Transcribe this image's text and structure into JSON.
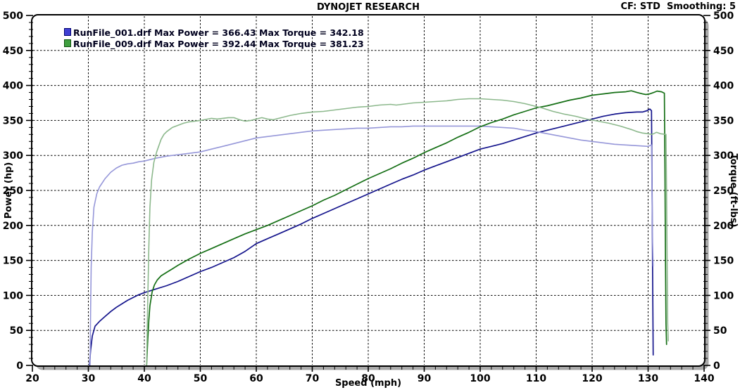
{
  "header": {
    "title": "DYNOJET RESEARCH",
    "settings_label": "CF: STD  Smoothing: 5"
  },
  "chart_data": {
    "type": "line",
    "title": "DYNOJET RESEARCH",
    "grid": "dashed major gridlines, white background, rounded black frame with gray drop shadow",
    "x_axis": {
      "label": "Speed (mph)",
      "range": [
        20,
        140
      ],
      "ticks": [
        20,
        30,
        40,
        50,
        60,
        70,
        80,
        90,
        100,
        110,
        120,
        130,
        140
      ],
      "minor_step": 2
    },
    "y_axis_left": {
      "label": "Power (hp)",
      "range": [
        0,
        500
      ],
      "ticks": [
        0,
        50,
        100,
        150,
        200,
        250,
        300,
        350,
        400,
        450,
        500
      ],
      "minor_step": 10
    },
    "y_axis_right": {
      "label": "Torque (ft-lbs)",
      "range": [
        0,
        500
      ],
      "ticks": [
        0,
        50,
        100,
        150,
        200,
        250,
        300,
        350,
        400,
        450,
        500
      ],
      "minor_step": 10
    },
    "legend": [
      {
        "run": "RunFile_001.drf",
        "max_power": 366.43,
        "max_torque": 342.18,
        "label_power": "RunFile_001.drf Max Power = 366.43",
        "label_torque": "Max Torque = 342.18",
        "swatch_fill": "#3f3fd3",
        "swatch_border": "#000070"
      },
      {
        "run": "RunFile_009.drf",
        "max_power": 392.44,
        "max_torque": 381.23,
        "label_power": "RunFile_009.drf Max Power = 392.44",
        "label_torque": "Max Torque = 381.23",
        "swatch_fill": "#3f9f3f",
        "swatch_border": "#0b4f0b"
      }
    ],
    "series": [
      {
        "name": "RunFile_001 Power (hp)",
        "color": "#14148c",
        "width": 1.7,
        "points": [
          [
            30.2,
            0
          ],
          [
            30.4,
            22
          ],
          [
            30.7,
            42
          ],
          [
            31.2,
            56
          ],
          [
            32,
            63
          ],
          [
            33,
            70
          ],
          [
            34,
            77
          ],
          [
            35,
            83
          ],
          [
            36,
            88
          ],
          [
            37,
            93
          ],
          [
            38,
            97
          ],
          [
            39,
            101
          ],
          [
            40,
            104
          ],
          [
            42,
            109
          ],
          [
            44,
            114
          ],
          [
            46,
            120
          ],
          [
            48,
            127
          ],
          [
            50,
            134
          ],
          [
            52,
            140
          ],
          [
            54,
            147
          ],
          [
            56,
            154
          ],
          [
            58,
            163
          ],
          [
            60,
            174
          ],
          [
            62,
            181
          ],
          [
            64,
            188
          ],
          [
            66,
            195
          ],
          [
            68,
            202
          ],
          [
            70,
            210
          ],
          [
            72,
            217
          ],
          [
            74,
            224
          ],
          [
            76,
            231
          ],
          [
            78,
            238
          ],
          [
            80,
            245
          ],
          [
            82,
            252
          ],
          [
            84,
            259
          ],
          [
            86,
            266
          ],
          [
            88,
            272
          ],
          [
            90,
            279
          ],
          [
            92,
            285
          ],
          [
            94,
            291
          ],
          [
            96,
            297
          ],
          [
            98,
            303
          ],
          [
            100,
            309
          ],
          [
            102,
            313
          ],
          [
            104,
            317
          ],
          [
            106,
            322
          ],
          [
            108,
            327
          ],
          [
            110,
            332
          ],
          [
            112,
            336
          ],
          [
            114,
            340
          ],
          [
            116,
            344
          ],
          [
            118,
            348
          ],
          [
            120,
            352
          ],
          [
            122,
            356
          ],
          [
            124,
            359
          ],
          [
            126,
            361
          ],
          [
            128,
            362
          ],
          [
            129,
            362
          ],
          [
            129.8,
            364
          ],
          [
            130.3,
            366.4
          ],
          [
            130.6,
            364
          ],
          [
            130.7,
            260
          ],
          [
            130.8,
            130
          ],
          [
            130.9,
            15
          ]
        ]
      },
      {
        "name": "RunFile_001 Torque (ft-lbs)",
        "color": "#9697d9",
        "width": 1.6,
        "points": [
          [
            30.3,
            0
          ],
          [
            30.4,
            80
          ],
          [
            30.5,
            140
          ],
          [
            30.7,
            190
          ],
          [
            31,
            226
          ],
          [
            31.5,
            245
          ],
          [
            32,
            255
          ],
          [
            33,
            267
          ],
          [
            34,
            276
          ],
          [
            35,
            282
          ],
          [
            36,
            286
          ],
          [
            37,
            288
          ],
          [
            38,
            289
          ],
          [
            39,
            291
          ],
          [
            40,
            292
          ],
          [
            42,
            296
          ],
          [
            44,
            299
          ],
          [
            46,
            301
          ],
          [
            48,
            303
          ],
          [
            50,
            305
          ],
          [
            52,
            309
          ],
          [
            54,
            313
          ],
          [
            56,
            317
          ],
          [
            58,
            321
          ],
          [
            60,
            325
          ],
          [
            62,
            327
          ],
          [
            64,
            329
          ],
          [
            66,
            331
          ],
          [
            68,
            333
          ],
          [
            70,
            335
          ],
          [
            72,
            336
          ],
          [
            74,
            337
          ],
          [
            76,
            338
          ],
          [
            78,
            339
          ],
          [
            80,
            339
          ],
          [
            82,
            340
          ],
          [
            84,
            341
          ],
          [
            86,
            341
          ],
          [
            88,
            342
          ],
          [
            92,
            342
          ],
          [
            96,
            342
          ],
          [
            100,
            342
          ],
          [
            102,
            341
          ],
          [
            104,
            340
          ],
          [
            106,
            339
          ],
          [
            108,
            336
          ],
          [
            110,
            334
          ],
          [
            112,
            331
          ],
          [
            114,
            328
          ],
          [
            116,
            325
          ],
          [
            118,
            322
          ],
          [
            120,
            320
          ],
          [
            122,
            318
          ],
          [
            124,
            316
          ],
          [
            126,
            315
          ],
          [
            128,
            314
          ],
          [
            130,
            313
          ],
          [
            130.6,
            315
          ],
          [
            130.7,
            245
          ],
          [
            130.8,
            175
          ],
          [
            130.9,
            142
          ]
        ]
      },
      {
        "name": "RunFile_009 Power (hp)",
        "color": "#156f15",
        "width": 1.7,
        "points": [
          [
            40.4,
            0
          ],
          [
            40.6,
            35
          ],
          [
            40.8,
            65
          ],
          [
            41,
            85
          ],
          [
            41.4,
            105
          ],
          [
            41.8,
            115
          ],
          [
            42.3,
            122
          ],
          [
            43,
            128
          ],
          [
            44,
            133
          ],
          [
            45,
            138
          ],
          [
            46,
            143
          ],
          [
            48,
            152
          ],
          [
            50,
            160
          ],
          [
            52,
            167
          ],
          [
            54,
            174
          ],
          [
            56,
            181
          ],
          [
            58,
            188
          ],
          [
            60,
            194
          ],
          [
            62,
            200
          ],
          [
            64,
            207
          ],
          [
            66,
            214
          ],
          [
            68,
            221
          ],
          [
            70,
            228
          ],
          [
            72,
            236
          ],
          [
            74,
            243
          ],
          [
            76,
            251
          ],
          [
            78,
            259
          ],
          [
            80,
            267
          ],
          [
            82,
            274
          ],
          [
            84,
            281
          ],
          [
            86,
            289
          ],
          [
            88,
            296
          ],
          [
            90,
            304
          ],
          [
            92,
            311
          ],
          [
            94,
            318
          ],
          [
            96,
            326
          ],
          [
            98,
            333
          ],
          [
            100,
            341
          ],
          [
            102,
            347
          ],
          [
            104,
            352
          ],
          [
            106,
            358
          ],
          [
            108,
            363
          ],
          [
            110,
            368
          ],
          [
            112,
            371
          ],
          [
            114,
            375
          ],
          [
            116,
            379
          ],
          [
            118,
            382
          ],
          [
            120,
            386
          ],
          [
            122,
            388
          ],
          [
            124,
            390
          ],
          [
            126,
            391
          ],
          [
            127,
            392.4
          ],
          [
            128,
            390
          ],
          [
            129,
            388
          ],
          [
            129.6,
            387
          ],
          [
            130.3,
            388
          ],
          [
            131,
            390
          ],
          [
            131.6,
            392
          ],
          [
            132.4,
            391
          ],
          [
            132.9,
            389
          ],
          [
            133,
            280
          ],
          [
            133.1,
            160
          ],
          [
            133.2,
            60
          ],
          [
            133.3,
            30
          ]
        ]
      },
      {
        "name": "RunFile_009 Torque (ft-lbs)",
        "color": "#8cb88c",
        "width": 1.6,
        "points": [
          [
            40.4,
            0
          ],
          [
            40.6,
            90
          ],
          [
            40.8,
            170
          ],
          [
            41,
            225
          ],
          [
            41.3,
            265
          ],
          [
            41.7,
            290
          ],
          [
            42.2,
            305
          ],
          [
            43,
            323
          ],
          [
            43.5,
            330
          ],
          [
            44,
            334
          ],
          [
            45,
            340
          ],
          [
            46,
            343
          ],
          [
            47,
            346
          ],
          [
            48,
            348
          ],
          [
            50,
            350
          ],
          [
            52,
            353
          ],
          [
            53,
            352
          ],
          [
            55,
            354
          ],
          [
            56,
            354
          ],
          [
            57,
            351
          ],
          [
            58,
            349
          ],
          [
            59,
            350
          ],
          [
            60,
            352
          ],
          [
            61,
            354
          ],
          [
            62,
            352
          ],
          [
            63,
            351
          ],
          [
            64,
            353
          ],
          [
            65,
            355
          ],
          [
            66,
            357
          ],
          [
            68,
            360
          ],
          [
            70,
            362
          ],
          [
            72,
            363
          ],
          [
            74,
            365
          ],
          [
            76,
            367
          ],
          [
            78,
            369
          ],
          [
            80,
            370
          ],
          [
            82,
            372
          ],
          [
            84,
            373
          ],
          [
            85,
            372
          ],
          [
            86,
            373
          ],
          [
            88,
            375
          ],
          [
            90,
            376
          ],
          [
            92,
            377
          ],
          [
            94,
            378
          ],
          [
            96,
            380
          ],
          [
            98,
            381
          ],
          [
            100,
            381
          ],
          [
            102,
            380
          ],
          [
            104,
            379
          ],
          [
            106,
            377
          ],
          [
            108,
            374
          ],
          [
            110,
            370
          ],
          [
            111,
            368
          ],
          [
            113,
            363
          ],
          [
            115,
            359
          ],
          [
            117,
            356
          ],
          [
            119,
            352
          ],
          [
            121,
            349
          ],
          [
            123,
            346
          ],
          [
            125,
            342
          ],
          [
            127,
            337
          ],
          [
            128,
            334
          ],
          [
            129,
            332
          ],
          [
            130,
            331
          ],
          [
            130.7,
            330
          ],
          [
            131.5,
            333
          ],
          [
            132.2,
            331
          ],
          [
            133.2,
            330
          ],
          [
            133.3,
            250
          ],
          [
            133.4,
            150
          ],
          [
            133.5,
            60
          ],
          [
            133.6,
            35
          ]
        ]
      }
    ]
  }
}
